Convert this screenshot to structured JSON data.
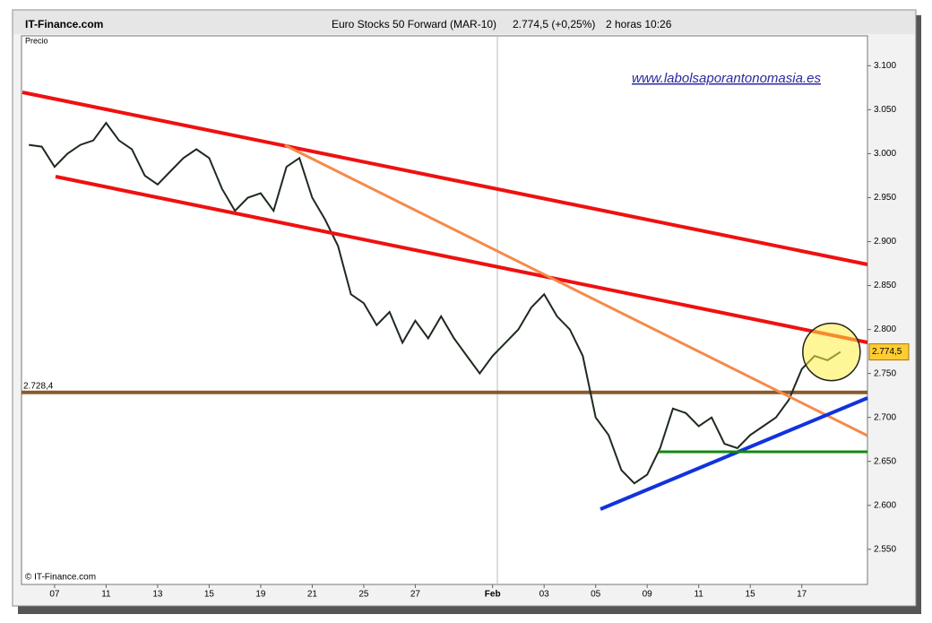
{
  "chart_data": {
    "type": "line",
    "source": "IT-Finance.com",
    "title": "Euro Stocks 50 Forward (MAR-10)",
    "last_price": "2.774,5 (+0,25%)",
    "timeframe": "2 horas  10:26",
    "y_label": "Precio",
    "annotation": "www.labolsaporantonomasia.es",
    "copyright": "© IT-Finance.com",
    "color": "#1e2a1e",
    "categories": [
      null,
      null,
      "07",
      null,
      null,
      null,
      "11",
      null,
      null,
      null,
      "13",
      null,
      null,
      null,
      "15",
      null,
      null,
      null,
      "19",
      null,
      null,
      null,
      "21",
      null,
      null,
      null,
      "25",
      null,
      null,
      null,
      "27",
      null,
      null,
      null,
      null,
      null,
      "Feb",
      null,
      null,
      null,
      "03",
      null,
      null,
      null,
      "05",
      null,
      null,
      null,
      "09",
      null,
      null,
      null,
      "11",
      null,
      null,
      null,
      "15",
      null,
      null,
      null,
      "17",
      null,
      null,
      null
    ],
    "values": [
      3010,
      3008,
      2985,
      3000,
      3010,
      3015,
      3035,
      3015,
      3005,
      2975,
      2965,
      2980,
      2995,
      3005,
      2995,
      2960,
      2935,
      2950,
      2955,
      2935,
      2985,
      2995,
      2950,
      2925,
      2895,
      2840,
      2830,
      2805,
      2820,
      2785,
      2810,
      2790,
      2815,
      2790,
      2770,
      2750,
      2770,
      2785,
      2800,
      2825,
      2840,
      2815,
      2800,
      2770,
      2700,
      2680,
      2640,
      2625,
      2635,
      2665,
      2710,
      2705,
      2690,
      2700,
      2670,
      2665,
      2680,
      2690,
      2700,
      2720,
      2755,
      2770,
      2765,
      2774.5
    ],
    "level": {
      "value": 2728.4,
      "label": "2.728,4",
      "color": "#8b5a2b"
    },
    "current": {
      "value": 2774.5,
      "label": "2.774,5"
    },
    "ylim": [
      2510,
      3134
    ],
    "yticks": [
      {
        "value": 3100,
        "label": "3.100"
      },
      {
        "value": 3050,
        "label": "3.050"
      },
      {
        "value": 3000,
        "label": "3.000"
      },
      {
        "value": 2950,
        "label": "2.950"
      },
      {
        "value": 2900,
        "label": "2.900"
      },
      {
        "value": 2850,
        "label": "2.850"
      },
      {
        "value": 2800,
        "label": "2.800"
      },
      {
        "value": 2750,
        "label": "2.750"
      },
      {
        "value": 2700,
        "label": "2.700"
      },
      {
        "value": 2650,
        "label": "2.650"
      },
      {
        "value": 2600,
        "label": "2.600"
      },
      {
        "value": 2550,
        "label": "2.550"
      }
    ]
  }
}
